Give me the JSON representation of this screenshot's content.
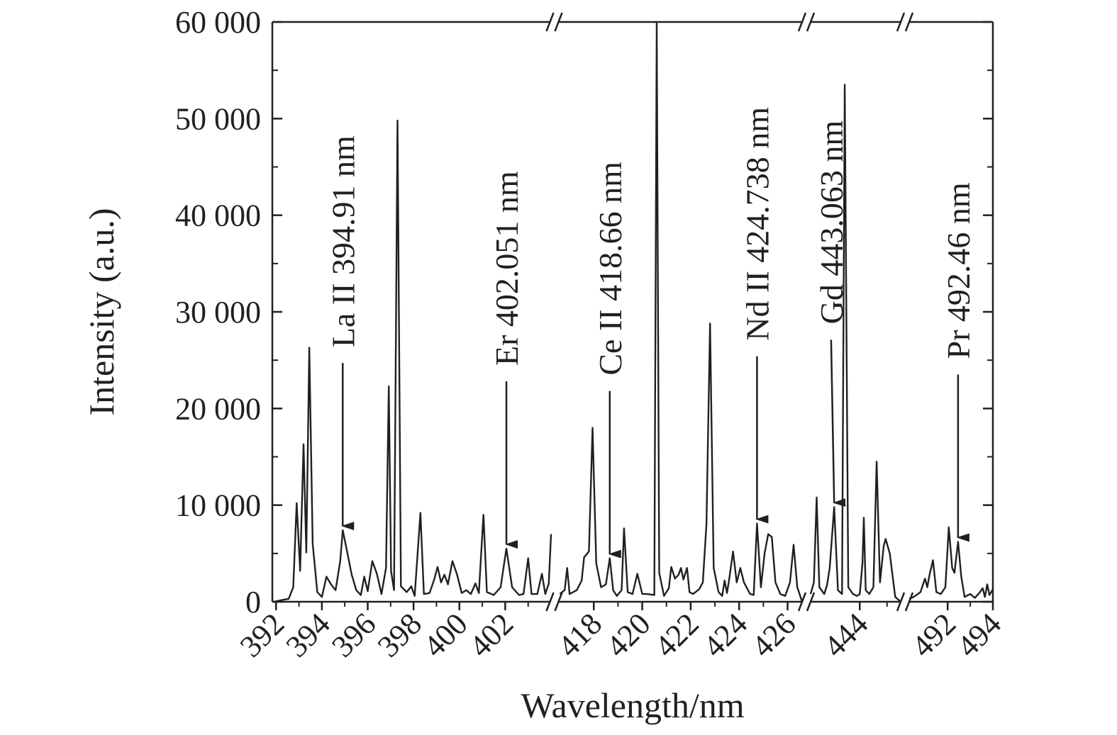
{
  "chart_data": {
    "type": "line",
    "title": "",
    "xlabel": "Wavelength/nm",
    "ylabel": "Intensity (a.u.)",
    "ylim": [
      0,
      60000
    ],
    "legend": "none",
    "grid": false,
    "colors": {
      "line": "#231f20",
      "axis": "#231f20"
    },
    "y_ticks": [
      {
        "value": 0,
        "label": "0"
      },
      {
        "value": 10000,
        "label": "10 000"
      },
      {
        "value": 20000,
        "label": "20 000"
      },
      {
        "value": 30000,
        "label": "30 000"
      },
      {
        "value": 40000,
        "label": "40 000"
      },
      {
        "value": 50000,
        "label": "50 000"
      },
      {
        "value": 60000,
        "label": "60 000"
      }
    ],
    "x_segments": [
      {
        "xlim": [
          391.9,
          404.0
        ],
        "ticks": [
          392,
          394,
          396,
          398,
          400,
          402
        ],
        "points": [
          [
            391.9,
            0
          ],
          [
            392.3,
            200
          ],
          [
            392.55,
            300
          ],
          [
            392.75,
            1500
          ],
          [
            392.9,
            10200
          ],
          [
            393.05,
            3200
          ],
          [
            393.2,
            16300
          ],
          [
            393.32,
            5100
          ],
          [
            393.45,
            26300
          ],
          [
            393.6,
            6000
          ],
          [
            393.8,
            1000
          ],
          [
            394.0,
            500
          ],
          [
            394.2,
            2600
          ],
          [
            394.4,
            1800
          ],
          [
            394.6,
            1200
          ],
          [
            394.8,
            4200
          ],
          [
            394.91,
            7400
          ],
          [
            395.1,
            5200
          ],
          [
            395.3,
            2800
          ],
          [
            395.5,
            1200
          ],
          [
            395.7,
            700
          ],
          [
            395.85,
            2600
          ],
          [
            396.0,
            1100
          ],
          [
            396.2,
            4200
          ],
          [
            396.4,
            2900
          ],
          [
            396.6,
            800
          ],
          [
            396.8,
            3500
          ],
          [
            396.92,
            22300
          ],
          [
            397.02,
            3200
          ],
          [
            397.15,
            1200
          ],
          [
            397.3,
            49800
          ],
          [
            397.45,
            1600
          ],
          [
            397.7,
            1000
          ],
          [
            397.9,
            1600
          ],
          [
            398.05,
            600
          ],
          [
            398.3,
            9200
          ],
          [
            398.45,
            800
          ],
          [
            398.7,
            900
          ],
          [
            398.9,
            2300
          ],
          [
            399.05,
            3600
          ],
          [
            399.2,
            2000
          ],
          [
            399.35,
            2800
          ],
          [
            399.5,
            1800
          ],
          [
            399.7,
            4200
          ],
          [
            399.9,
            2800
          ],
          [
            400.1,
            900
          ],
          [
            400.3,
            1200
          ],
          [
            400.5,
            800
          ],
          [
            400.7,
            1900
          ],
          [
            400.85,
            900
          ],
          [
            401.05,
            9000
          ],
          [
            401.2,
            1000
          ],
          [
            401.5,
            700
          ],
          [
            401.8,
            1500
          ],
          [
            402.051,
            5500
          ],
          [
            402.3,
            1500
          ],
          [
            402.6,
            700
          ],
          [
            402.8,
            800
          ],
          [
            403.0,
            4500
          ],
          [
            403.15,
            800
          ],
          [
            403.4,
            800
          ],
          [
            403.6,
            2900
          ],
          [
            403.75,
            800
          ],
          [
            403.9,
            1900
          ],
          [
            404.0,
            7000
          ]
        ]
      },
      {
        "xlim": [
          416.5,
          426.6
        ],
        "ticks": [
          418,
          420,
          422,
          424,
          426
        ],
        "points": [
          [
            416.6,
            800
          ],
          [
            416.8,
            1200
          ],
          [
            416.9,
            3500
          ],
          [
            417.0,
            800
          ],
          [
            417.3,
            1200
          ],
          [
            417.5,
            2200
          ],
          [
            417.6,
            4600
          ],
          [
            417.8,
            5200
          ],
          [
            417.95,
            18000
          ],
          [
            418.1,
            4000
          ],
          [
            418.3,
            1500
          ],
          [
            418.5,
            1800
          ],
          [
            418.66,
            4500
          ],
          [
            418.8,
            1200
          ],
          [
            418.95,
            600
          ],
          [
            419.15,
            1200
          ],
          [
            419.25,
            7600
          ],
          [
            419.4,
            1000
          ],
          [
            419.6,
            800
          ],
          [
            419.8,
            2900
          ],
          [
            420.0,
            800
          ],
          [
            420.2,
            800
          ],
          [
            420.5,
            700
          ],
          [
            420.6,
            60000
          ],
          [
            420.7,
            3000
          ],
          [
            420.9,
            600
          ],
          [
            421.1,
            1400
          ],
          [
            421.2,
            3600
          ],
          [
            421.35,
            2400
          ],
          [
            421.5,
            2800
          ],
          [
            421.6,
            3500
          ],
          [
            421.7,
            2300
          ],
          [
            421.85,
            3500
          ],
          [
            421.95,
            1000
          ],
          [
            422.1,
            800
          ],
          [
            422.35,
            1300
          ],
          [
            422.5,
            2000
          ],
          [
            422.65,
            8000
          ],
          [
            422.8,
            28800
          ],
          [
            422.95,
            3500
          ],
          [
            423.15,
            1000
          ],
          [
            423.3,
            600
          ],
          [
            423.4,
            2200
          ],
          [
            423.5,
            900
          ],
          [
            423.6,
            2500
          ],
          [
            423.75,
            5200
          ],
          [
            423.9,
            2000
          ],
          [
            424.05,
            3500
          ],
          [
            424.2,
            2000
          ],
          [
            424.45,
            800
          ],
          [
            424.6,
            700
          ],
          [
            424.738,
            8100
          ],
          [
            424.9,
            1500
          ],
          [
            425.05,
            5000
          ],
          [
            425.2,
            7000
          ],
          [
            425.35,
            6700
          ],
          [
            425.5,
            2000
          ],
          [
            425.7,
            800
          ],
          [
            425.9,
            600
          ],
          [
            426.1,
            2000
          ],
          [
            426.25,
            5900
          ],
          [
            426.4,
            1500
          ],
          [
            426.6,
            0
          ]
        ]
      },
      {
        "xlim": [
          442.2,
          445.5
        ],
        "ticks": [
          444
        ],
        "points": [
          [
            442.2,
            800
          ],
          [
            442.32,
            2000
          ],
          [
            442.42,
            10800
          ],
          [
            442.52,
            1500
          ],
          [
            442.7,
            800
          ],
          [
            442.8,
            1700
          ],
          [
            442.9,
            3500
          ],
          [
            443.063,
            9800
          ],
          [
            443.2,
            1200
          ],
          [
            443.35,
            800
          ],
          [
            443.45,
            53500
          ],
          [
            443.58,
            1500
          ],
          [
            443.75,
            800
          ],
          [
            443.9,
            600
          ],
          [
            444.0,
            800
          ],
          [
            444.1,
            4000
          ],
          [
            444.15,
            8700
          ],
          [
            444.22,
            1200
          ],
          [
            444.35,
            800
          ],
          [
            444.5,
            1500
          ],
          [
            444.62,
            14500
          ],
          [
            444.74,
            2000
          ],
          [
            444.88,
            5800
          ],
          [
            444.95,
            6500
          ],
          [
            445.1,
            5000
          ],
          [
            445.3,
            500
          ],
          [
            445.5,
            0
          ]
        ]
      },
      {
        "xlim": [
          490.3,
          494.0
        ],
        "ticks": [
          492,
          494
        ],
        "points": [
          [
            490.3,
            300
          ],
          [
            490.5,
            500
          ],
          [
            490.8,
            1000
          ],
          [
            491.0,
            2400
          ],
          [
            491.1,
            1500
          ],
          [
            491.2,
            2800
          ],
          [
            491.35,
            4300
          ],
          [
            491.5,
            1000
          ],
          [
            491.7,
            800
          ],
          [
            491.9,
            1500
          ],
          [
            492.05,
            7700
          ],
          [
            492.2,
            3500
          ],
          [
            492.3,
            3000
          ],
          [
            492.46,
            6200
          ],
          [
            492.6,
            2600
          ],
          [
            492.75,
            500
          ],
          [
            493.0,
            800
          ],
          [
            493.2,
            400
          ],
          [
            493.4,
            900
          ],
          [
            493.55,
            1400
          ],
          [
            493.65,
            500
          ],
          [
            493.75,
            1800
          ],
          [
            493.85,
            700
          ],
          [
            494.0,
            1300
          ]
        ]
      }
    ],
    "annotations": [
      {
        "text": "La II 394.91 nm",
        "target_x": 394.91,
        "target_y": 7400,
        "label_x": 394.91
      },
      {
        "text": "Er 402.051 nm",
        "target_x": 402.051,
        "target_y": 5500,
        "label_x": 402.051
      },
      {
        "text": "Ce II 418.66 nm",
        "target_x": 418.66,
        "target_y": 4500,
        "label_x": 418.66
      },
      {
        "text": "Nd II 424.738 nm",
        "target_x": 424.738,
        "target_y": 8100,
        "label_x": 424.738
      },
      {
        "text": "Gd 443.063 nm",
        "target_x": 443.063,
        "target_y": 9800,
        "label_x": 442.95
      },
      {
        "text": "Pr 492.46 nm",
        "target_x": 492.46,
        "target_y": 6200,
        "label_x": 492.46
      }
    ]
  }
}
